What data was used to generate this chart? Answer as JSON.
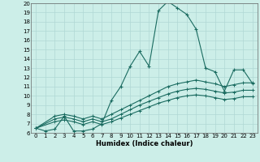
{
  "xlabel": "Humidex (Indice chaleur)",
  "bg_color": "#cceee8",
  "line_color": "#1a6b60",
  "grid_color": "#b0d8d4",
  "xlim": [
    -0.5,
    23.5
  ],
  "ylim": [
    6,
    20
  ],
  "xticks": [
    0,
    1,
    2,
    3,
    4,
    5,
    6,
    7,
    8,
    9,
    10,
    11,
    12,
    13,
    14,
    15,
    16,
    17,
    18,
    19,
    20,
    21,
    22,
    23
  ],
  "yticks": [
    6,
    7,
    8,
    9,
    10,
    11,
    12,
    13,
    14,
    15,
    16,
    17,
    18,
    19,
    20
  ],
  "curve1_x": [
    0,
    1,
    2,
    3,
    4,
    5,
    6,
    7,
    8,
    9,
    10,
    11,
    12,
    13,
    14,
    15,
    16,
    17,
    18,
    19,
    20,
    21,
    22,
    23
  ],
  "curve1_y": [
    6.5,
    6.2,
    6.4,
    7.8,
    6.2,
    6.2,
    6.4,
    7.0,
    9.5,
    11.0,
    13.2,
    14.8,
    13.2,
    19.2,
    20.2,
    19.5,
    18.8,
    17.2,
    13.0,
    12.6,
    10.5,
    12.8,
    12.8,
    11.3
  ],
  "curve2_x": [
    0,
    2,
    3,
    4,
    5,
    6,
    7,
    8,
    9,
    10,
    11,
    12,
    13,
    14,
    15,
    16,
    17,
    18,
    19,
    20,
    21,
    22,
    23
  ],
  "curve2_y": [
    6.5,
    7.8,
    8.0,
    7.8,
    7.5,
    7.8,
    7.5,
    8.0,
    8.5,
    9.0,
    9.5,
    10.0,
    10.5,
    11.0,
    11.3,
    11.5,
    11.7,
    11.5,
    11.3,
    11.0,
    11.2,
    11.4,
    11.4
  ],
  "curve3_x": [
    0,
    2,
    3,
    4,
    5,
    6,
    7,
    8,
    9,
    10,
    11,
    12,
    13,
    14,
    15,
    16,
    17,
    18,
    19,
    20,
    21,
    22,
    23
  ],
  "curve3_y": [
    6.5,
    7.5,
    7.7,
    7.5,
    7.2,
    7.5,
    7.2,
    7.5,
    8.0,
    8.5,
    9.0,
    9.4,
    9.8,
    10.2,
    10.5,
    10.7,
    10.8,
    10.7,
    10.5,
    10.3,
    10.4,
    10.6,
    10.6
  ],
  "curve4_x": [
    0,
    2,
    3,
    4,
    5,
    6,
    7,
    8,
    9,
    10,
    11,
    12,
    13,
    14,
    15,
    16,
    17,
    18,
    19,
    20,
    21,
    22,
    23
  ],
  "curve4_y": [
    6.5,
    7.2,
    7.4,
    7.2,
    6.9,
    7.2,
    6.9,
    7.2,
    7.6,
    8.0,
    8.4,
    8.8,
    9.2,
    9.5,
    9.8,
    10.0,
    10.1,
    10.0,
    9.8,
    9.6,
    9.7,
    9.9,
    9.9
  ]
}
